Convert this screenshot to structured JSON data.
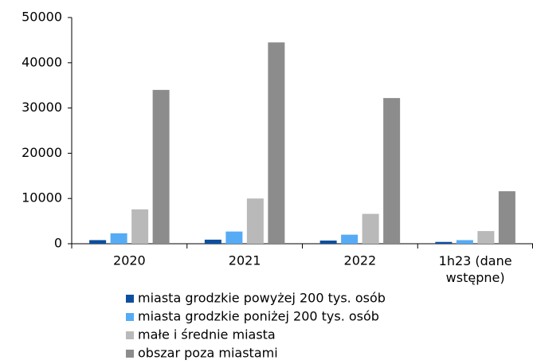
{
  "chart_data": {
    "type": "bar",
    "categories": [
      "2020",
      "2021",
      "2022",
      "1h23 (dane wstępne)"
    ],
    "series": [
      {
        "name": "miasta grodzkie powyżej 200 tys. osób",
        "color": "#0d4f9e",
        "values": [
          800,
          900,
          700,
          400
        ]
      },
      {
        "name": "miasta grodzkie poniżej 200 tys. osób",
        "color": "#56abf5",
        "values": [
          2300,
          2700,
          2000,
          800
        ]
      },
      {
        "name": "małe i średnie miasta",
        "color": "#b9b9b9",
        "values": [
          7600,
          10000,
          6600,
          2800
        ]
      },
      {
        "name": "obszar poza miastami",
        "color": "#8c8c8c",
        "values": [
          34000,
          44500,
          32200,
          11600
        ]
      }
    ],
    "ylim": [
      0,
      50000
    ],
    "yticks": [
      0,
      10000,
      20000,
      30000,
      40000,
      50000
    ],
    "grid": false,
    "legend": "bottom"
  }
}
